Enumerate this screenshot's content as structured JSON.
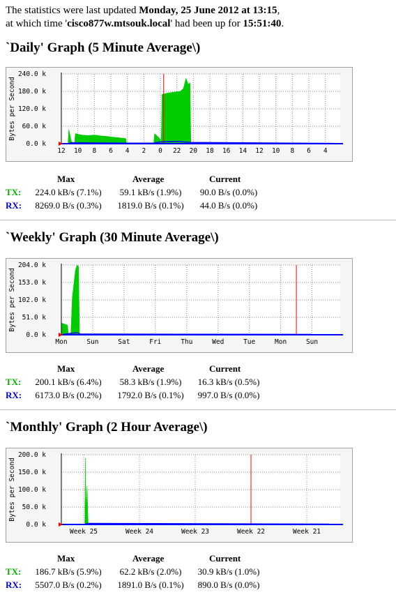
{
  "intro": {
    "line1_prefix": "The statistics were last updated ",
    "updated": "Monday, 25 June 2012 at 13:15",
    "line1_suffix": ",",
    "line2_prefix": "at which time '",
    "host": "cisco877w.mtsouk.local",
    "line2_middle": "' had been up for ",
    "uptime": "15:51:40",
    "line2_suffix": "."
  },
  "stat_headers": {
    "max": "Max",
    "avg": "Average",
    "cur": "Current"
  },
  "colors": {
    "tx": "#00cc00",
    "rx": "#0000ff",
    "grid": "#888888",
    "marker": "#ff0000",
    "panel": "#f5f5f5",
    "plot": "#ffffff"
  },
  "graphs": [
    {
      "title": "`Daily' Graph (5 Minute Average\\)",
      "chart_data": {
        "type": "area",
        "ylabel": "Bytes per Second",
        "y_ticks": [
          "240.0 k",
          "180.0 k",
          "120.0 k",
          "60.0 k",
          "0.0 k"
        ],
        "ylim": [
          0,
          240
        ],
        "x_ticks": [
          "12",
          "10",
          "8",
          "6",
          "4",
          "2",
          "0",
          "22",
          "20",
          "18",
          "16",
          "14",
          "12",
          "10",
          "8",
          "6",
          "4"
        ],
        "now_marker": 6.2,
        "tx_segments": [
          [
            [
              0.4,
              0
            ],
            [
              0.45,
              50
            ],
            [
              0.6,
              8
            ],
            [
              0.8,
              0
            ]
          ],
          [
            [
              0.8,
              0
            ],
            [
              0.85,
              35
            ],
            [
              1.2,
              30
            ],
            [
              1.6,
              28
            ],
            [
              2.0,
              30
            ],
            [
              2.4,
              27
            ],
            [
              2.8,
              25
            ],
            [
              3.2,
              22
            ],
            [
              3.6,
              20
            ],
            [
              3.9,
              18
            ],
            [
              3.95,
              0
            ]
          ],
          [
            [
              5.6,
              0
            ],
            [
              5.65,
              35
            ],
            [
              5.9,
              22
            ],
            [
              6.0,
              15
            ],
            [
              6.05,
              0
            ]
          ],
          [
            [
              6.05,
              0
            ],
            [
              6.1,
              170
            ],
            [
              6.5,
              175
            ],
            [
              6.9,
              178
            ],
            [
              7.2,
              180
            ],
            [
              7.4,
              190
            ],
            [
              7.55,
              225
            ],
            [
              7.7,
              205
            ],
            [
              7.8,
              210
            ],
            [
              7.85,
              0
            ]
          ]
        ],
        "rx_segments": [
          [
            [
              0.4,
              0
            ],
            [
              0.6,
              3
            ],
            [
              3.9,
              2
            ],
            [
              5.6,
              2
            ],
            [
              6.0,
              6
            ],
            [
              7.0,
              8
            ],
            [
              7.85,
              4
            ],
            [
              16.5,
              1
            ]
          ]
        ]
      },
      "stats": {
        "tx": {
          "label": "TX:",
          "max": "224.0 kB/s (7.1%)",
          "avg": "59.1 kB/s (1.9%)",
          "cur": "90.0 B/s (0.0%)"
        },
        "rx": {
          "label": "RX:",
          "max": "8269.0 B/s (0.3%)",
          "avg": "1819.0 B/s (0.1%)",
          "cur": "44.0 B/s (0.0%)"
        }
      }
    },
    {
      "title": "`Weekly' Graph (30 Minute Average\\)",
      "chart_data": {
        "type": "area",
        "ylabel": "Bytes per Second",
        "y_ticks": [
          "204.0 k",
          "153.0 k",
          "102.0 k",
          "51.0 k",
          "0.0 k"
        ],
        "ylim": [
          0,
          204
        ],
        "x_ticks": [
          "Mon",
          "Sun",
          "Sat",
          "Fri",
          "Thu",
          "Wed",
          "Tue",
          "Mon",
          "Sun"
        ],
        "now_marker": 7.5,
        "tx_segments": [
          [
            [
              0.0,
              0
            ],
            [
              0.02,
              34
            ],
            [
              0.2,
              28
            ],
            [
              0.22,
              0
            ]
          ],
          [
            [
              0.3,
              0
            ],
            [
              0.35,
              110
            ],
            [
              0.45,
              190
            ],
            [
              0.5,
              204
            ],
            [
              0.55,
              200
            ],
            [
              0.58,
              0
            ]
          ]
        ],
        "rx_segments": [
          [
            [
              0.0,
              0
            ],
            [
              0.2,
              3
            ],
            [
              0.5,
              6
            ],
            [
              0.6,
              2
            ],
            [
              8.0,
              1
            ]
          ]
        ]
      },
      "stats": {
        "tx": {
          "label": "TX:",
          "max": "200.1 kB/s (6.4%)",
          "avg": "58.3 kB/s (1.9%)",
          "cur": "16.3 kB/s (0.5%)"
        },
        "rx": {
          "label": "RX:",
          "max": "6173.0 B/s (0.2%)",
          "avg": "1792.0 B/s (0.1%)",
          "cur": "997.0 B/s (0.0%)"
        }
      }
    },
    {
      "title": "`Monthly' Graph (2 Hour Average\\)",
      "chart_data": {
        "type": "area",
        "ylabel": "Bytes per Second",
        "y_ticks": [
          "200.0 k",
          "150.0 k",
          "100.0 k",
          "50.0 k",
          "0.0 k"
        ],
        "ylim": [
          0,
          200
        ],
        "x_ticks": [
          "Week 25",
          "Week 24",
          "Week 23",
          "Week 22",
          "Week 21"
        ],
        "now_marker": 3.0,
        "tx_segments": [
          [
            [
              0.02,
              0
            ],
            [
              0.03,
              190
            ],
            [
              0.04,
              45
            ],
            [
              0.06,
              110
            ],
            [
              0.07,
              60
            ],
            [
              0.08,
              0
            ]
          ]
        ],
        "rx_segments": [
          [
            [
              0.0,
              0
            ],
            [
              0.08,
              3
            ],
            [
              4.4,
              1
            ]
          ]
        ]
      },
      "stats": {
        "tx": {
          "label": "TX:",
          "max": "186.7 kB/s (5.9%)",
          "avg": "62.2 kB/s (2.0%)",
          "cur": "30.9 kB/s (1.0%)"
        },
        "rx": {
          "label": "RX:",
          "max": "5507.0 B/s (0.2%)",
          "avg": "1891.0 B/s (0.1%)",
          "cur": "890.0 B/s (0.0%)"
        }
      }
    }
  ]
}
